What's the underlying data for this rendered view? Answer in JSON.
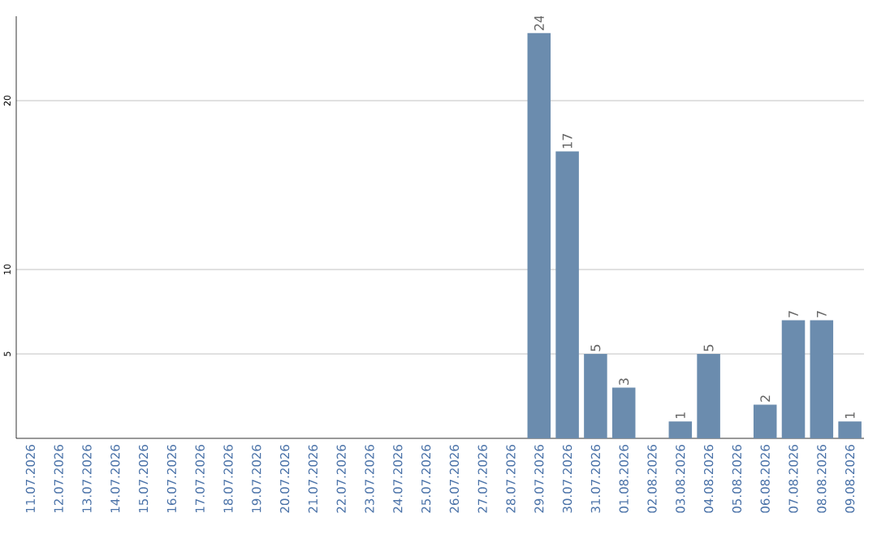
{
  "chart_data": {
    "type": "bar",
    "categories": [
      "11.07.2026",
      "12.07.2026",
      "13.07.2026",
      "14.07.2026",
      "15.07.2026",
      "16.07.2026",
      "17.07.2026",
      "18.07.2026",
      "19.07.2026",
      "20.07.2026",
      "21.07.2026",
      "22.07.2026",
      "23.07.2026",
      "24.07.2026",
      "25.07.2026",
      "26.07.2026",
      "27.07.2026",
      "28.07.2026",
      "29.07.2026",
      "30.07.2026",
      "31.07.2026",
      "01.08.2026",
      "02.08.2026",
      "03.08.2026",
      "04.08.2026",
      "05.08.2026",
      "06.08.2026",
      "07.08.2026",
      "08.08.2026",
      "09.08.2026"
    ],
    "values": [
      0,
      0,
      0,
      0,
      0,
      0,
      0,
      0,
      0,
      0,
      0,
      0,
      0,
      0,
      0,
      0,
      0,
      0,
      24,
      17,
      5,
      3,
      0,
      1,
      5,
      0,
      2,
      7,
      7,
      1
    ],
    "value_labels": [
      null,
      null,
      null,
      null,
      null,
      null,
      null,
      null,
      null,
      null,
      null,
      null,
      null,
      null,
      null,
      null,
      null,
      null,
      "24",
      "17",
      "5",
      "3",
      null,
      "1",
      "5",
      null,
      "2",
      "7",
      "7",
      "1"
    ],
    "color": "#6b8cae",
    "ylim": [
      0,
      25
    ],
    "yticks": [
      5,
      10,
      20
    ],
    "grid": "y"
  }
}
